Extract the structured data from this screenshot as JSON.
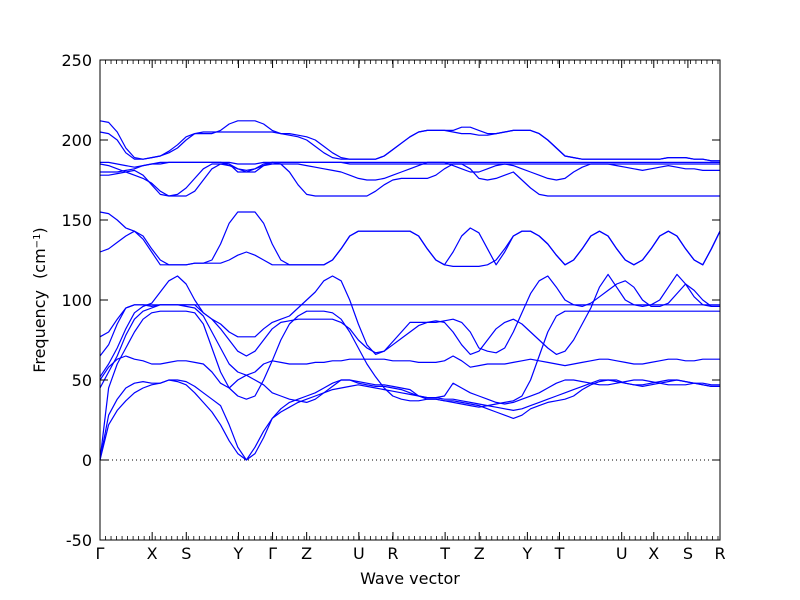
{
  "chart_data": {
    "type": "line",
    "title": "",
    "xlabel": "Wave vector",
    "ylabel": "Frequency",
    "ylabel_unit": "(cm",
    "ylabel_unit_exp": "−1",
    "ylabel_close": ")",
    "ylim": [
      -50,
      250
    ],
    "yticks": [
      -50,
      0,
      50,
      100,
      150,
      200,
      250
    ],
    "grid": false,
    "line_color": "#0000ff",
    "zero_line": {
      "y": 0,
      "style": "dotted"
    },
    "high_symmetry_points": [
      {
        "label": "Γ",
        "x": 0.0
      },
      {
        "label": "X",
        "x": 0.52
      },
      {
        "label": "S",
        "x": 0.86
      },
      {
        "label": "Y",
        "x": 1.38
      },
      {
        "label": "Γ",
        "x": 1.72
      },
      {
        "label": "Z",
        "x": 2.06
      },
      {
        "label": "U",
        "x": 2.58
      },
      {
        "label": "R",
        "x": 2.92
      },
      {
        "label": "T",
        "x": 3.44
      },
      {
        "label": "Z",
        "x": 3.78
      },
      {
        "label": "Y",
        "x": 4.26
      },
      {
        "label": "T",
        "x": 4.58
      },
      {
        "label": "U",
        "x": 5.2
      },
      {
        "label": "X",
        "x": 5.52
      },
      {
        "label": "S",
        "x": 5.86
      },
      {
        "label": "R",
        "x": 6.18
      }
    ],
    "series": [
      {
        "values": [
          0,
          22,
          31,
          37,
          42,
          45,
          47,
          48,
          50,
          49,
          47,
          42,
          36,
          30,
          22,
          12,
          4,
          0,
          4,
          14,
          26,
          32,
          36,
          38,
          40,
          42,
          45,
          48,
          50,
          50,
          49,
          48,
          47,
          47,
          46,
          45,
          44,
          40,
          38,
          38,
          37,
          37,
          36,
          35,
          34,
          32,
          30,
          28,
          26,
          28,
          32,
          34,
          36,
          37,
          38,
          40,
          44,
          47,
          49,
          50,
          50,
          48,
          47,
          46,
          47,
          48,
          49,
          50,
          49,
          48,
          47,
          46,
          46
        ]
      },
      {
        "values": [
          0,
          28,
          38,
          45,
          48,
          49,
          48,
          48,
          50,
          50,
          49,
          46,
          42,
          38,
          34,
          22,
          8,
          0,
          8,
          18,
          26,
          30,
          33,
          36,
          38,
          40,
          42,
          44,
          45,
          46,
          47,
          46,
          45,
          44,
          43,
          42,
          41,
          40,
          39,
          39,
          38,
          38,
          37,
          36,
          35,
          34,
          33,
          32,
          31,
          32,
          34,
          36,
          38,
          40,
          42,
          44,
          46,
          48,
          50,
          50,
          49,
          48,
          47,
          47,
          48,
          49,
          50,
          50,
          49,
          48,
          47,
          46,
          46
        ]
      },
      {
        "values": [
          0,
          45,
          60,
          70,
          80,
          88,
          92,
          93,
          93,
          93,
          93,
          92,
          85,
          70,
          55,
          45,
          40,
          38,
          40,
          50,
          62,
          75,
          85,
          90,
          93,
          93,
          93,
          92,
          88,
          80,
          70,
          60,
          52,
          45,
          40,
          38,
          37,
          37,
          38,
          38,
          37,
          36,
          35,
          34,
          33,
          34,
          35,
          36,
          37,
          40,
          50,
          65,
          80,
          90,
          93,
          93,
          93,
          93,
          93,
          93,
          93,
          93,
          93,
          93,
          93,
          93,
          93,
          93,
          93,
          93,
          93,
          93,
          93
        ]
      },
      {
        "values": [
          45,
          55,
          65,
          78,
          88,
          93,
          95,
          97,
          97,
          97,
          96,
          95,
          90,
          80,
          70,
          60,
          55,
          53,
          55,
          60,
          62,
          61,
          60,
          60,
          60,
          61,
          61,
          62,
          62,
          63,
          63,
          63,
          63,
          63,
          62,
          62,
          62,
          61,
          61,
          61,
          62,
          65,
          62,
          58,
          59,
          60,
          60,
          60,
          61,
          62,
          63,
          62,
          61,
          60,
          59,
          60,
          61,
          62,
          63,
          63,
          62,
          61,
          60,
          60,
          61,
          62,
          63,
          63,
          62,
          62,
          63,
          63,
          63
        ]
      },
      {
        "values": [
          50,
          58,
          63,
          65,
          63,
          62,
          60,
          60,
          61,
          62,
          62,
          61,
          60,
          55,
          48,
          45,
          50,
          53,
          50,
          47,
          42,
          40,
          38,
          37,
          36,
          38,
          42,
          46,
          50,
          50,
          48,
          47,
          46,
          46,
          45,
          44,
          42,
          40,
          39,
          39,
          40,
          48,
          45,
          42,
          40,
          38,
          36,
          35,
          36,
          38,
          40,
          42,
          45,
          48,
          50,
          50,
          49,
          48,
          47,
          47,
          48,
          49,
          50,
          50,
          49,
          48,
          47,
          47,
          47,
          48,
          48,
          47,
          47
        ]
      },
      {
        "values": [
          52,
          60,
          70,
          82,
          92,
          96,
          98,
          105,
          112,
          115,
          110,
          100,
          92,
          88,
          85,
          80,
          77,
          77,
          77,
          82,
          86,
          88,
          90,
          95,
          100,
          105,
          112,
          115,
          112,
          100,
          85,
          72,
          66,
          68,
          74,
          80,
          86,
          86,
          86,
          86,
          87,
          88,
          86,
          80,
          70,
          68,
          67,
          70,
          80,
          92,
          104,
          112,
          115,
          108,
          100,
          97,
          96,
          98,
          102,
          106,
          110,
          112,
          108,
          100,
          96,
          96,
          98,
          104,
          110,
          106,
          100,
          96,
          96
        ]
      },
      {
        "values": [
          65,
          72,
          85,
          95,
          97,
          97,
          97,
          97,
          97,
          97,
          97,
          97,
          97,
          97,
          97,
          97,
          97,
          97,
          97,
          97,
          97,
          97,
          97,
          97,
          97,
          97,
          97,
          97,
          97,
          97,
          97,
          97,
          97,
          97,
          97,
          97,
          97,
          97,
          97,
          97,
          97,
          97,
          97,
          97,
          97,
          97,
          97,
          97,
          97,
          97,
          97,
          97,
          97,
          97,
          97,
          97,
          97,
          97,
          97,
          97,
          97,
          97,
          97,
          97,
          97,
          97,
          97,
          97,
          97,
          97,
          97,
          97,
          97
        ]
      },
      {
        "values": [
          77,
          80,
          88,
          95,
          97,
          97,
          96,
          97,
          97,
          97,
          97,
          97,
          92,
          88,
          82,
          75,
          68,
          65,
          68,
          75,
          82,
          86,
          87,
          88,
          88,
          88,
          88,
          88,
          86,
          82,
          75,
          70,
          67,
          68,
          72,
          76,
          80,
          84,
          86,
          87,
          86,
          80,
          72,
          66,
          68,
          75,
          82,
          86,
          88,
          85,
          80,
          75,
          70,
          66,
          68,
          75,
          85,
          95,
          108,
          116,
          108,
          100,
          97,
          96,
          97,
          100,
          108,
          116,
          110,
          102,
          97,
          96,
          96
        ]
      },
      {
        "values": [
          130,
          132,
          136,
          140,
          143,
          140,
          132,
          125,
          122,
          122,
          122,
          123,
          123,
          123,
          123,
          125,
          128,
          130,
          128,
          125,
          122,
          122,
          122,
          122,
          122,
          122,
          122,
          125,
          132,
          140,
          143,
          143,
          143,
          143,
          143,
          143,
          143,
          140,
          132,
          125,
          122,
          121,
          121,
          121,
          121,
          122,
          125,
          132,
          140,
          143,
          143,
          140,
          135,
          128,
          122,
          125,
          132,
          140,
          143,
          140,
          132,
          125,
          122,
          125,
          132,
          140,
          143,
          140,
          132,
          125,
          122,
          132,
          143
        ]
      },
      {
        "values": [
          155,
          154,
          150,
          145,
          143,
          138,
          130,
          122,
          122,
          122,
          122,
          123,
          123,
          125,
          135,
          148,
          155,
          155,
          155,
          148,
          135,
          125,
          122,
          122,
          122,
          122,
          122,
          125,
          132,
          140,
          143,
          143,
          143,
          143,
          143,
          143,
          143,
          140,
          132,
          125,
          122,
          130,
          140,
          145,
          142,
          132,
          122,
          130,
          140,
          143,
          143,
          140,
          135,
          128,
          122,
          125,
          132,
          140,
          143,
          140,
          132,
          125,
          122,
          125,
          132,
          140,
          143,
          140,
          132,
          125,
          122,
          132,
          143
        ]
      },
      {
        "values": [
          178,
          178,
          179,
          180,
          181,
          178,
          172,
          166,
          165,
          165,
          165,
          168,
          175,
          182,
          185,
          185,
          180,
          180,
          180,
          184,
          186,
          185,
          180,
          172,
          166,
          165,
          165,
          165,
          165,
          165,
          165,
          165,
          168,
          172,
          175,
          176,
          176,
          176,
          176,
          178,
          182,
          185,
          185,
          182,
          176,
          175,
          176,
          178,
          180,
          175,
          170,
          166,
          165,
          165,
          165,
          165,
          165,
          165,
          165,
          165,
          165,
          165,
          165,
          165,
          165,
          165,
          165,
          165,
          165,
          165,
          165,
          165,
          165
        ]
      },
      {
        "values": [
          180,
          180,
          180,
          181,
          182,
          184,
          185,
          185,
          186,
          186,
          186,
          186,
          186,
          186,
          186,
          186,
          185,
          185,
          185,
          186,
          186,
          186,
          186,
          186,
          186,
          186,
          186,
          186,
          186,
          185,
          185,
          185,
          185,
          185,
          185,
          185,
          185,
          185,
          185,
          185,
          185,
          185,
          185,
          185,
          185,
          185,
          185,
          185,
          185,
          185,
          185,
          185,
          185,
          185,
          185,
          185,
          185,
          185,
          185,
          185,
          185,
          185,
          185,
          185,
          185,
          185,
          185,
          185,
          185,
          185,
          185,
          185,
          185
        ]
      },
      {
        "values": [
          185,
          184,
          182,
          180,
          178,
          176,
          173,
          168,
          165,
          166,
          170,
          176,
          182,
          185,
          185,
          184,
          182,
          181,
          182,
          184,
          185,
          185,
          185,
          185,
          184,
          183,
          182,
          181,
          180,
          178,
          176,
          175,
          175,
          176,
          178,
          180,
          182,
          184,
          186,
          186,
          186,
          184,
          182,
          180,
          180,
          182,
          184,
          185,
          184,
          182,
          180,
          178,
          176,
          175,
          176,
          180,
          183,
          185,
          185,
          185,
          184,
          183,
          182,
          181,
          182,
          183,
          184,
          183,
          182,
          182,
          181,
          181,
          181
        ]
      },
      {
        "values": [
          186,
          186,
          185,
          184,
          183,
          184,
          185,
          186,
          186,
          186,
          186,
          186,
          186,
          186,
          186,
          185,
          182,
          180,
          182,
          185,
          186,
          186,
          186,
          186,
          186,
          186,
          186,
          186,
          186,
          186,
          186,
          186,
          186,
          186,
          186,
          186,
          186,
          186,
          186,
          186,
          186,
          186,
          186,
          186,
          186,
          186,
          186,
          186,
          186,
          186,
          186,
          186,
          186,
          186,
          186,
          186,
          186,
          186,
          186,
          186,
          186,
          186,
          186,
          186,
          186,
          186,
          186,
          186,
          186,
          186,
          186,
          186,
          186
        ]
      },
      {
        "values": [
          205,
          204,
          200,
          192,
          188,
          188,
          189,
          190,
          192,
          195,
          200,
          204,
          205,
          205,
          205,
          205,
          205,
          205,
          205,
          205,
          205,
          204,
          204,
          203,
          202,
          200,
          196,
          192,
          189,
          188,
          188,
          188,
          188,
          190,
          194,
          198,
          202,
          205,
          206,
          206,
          206,
          205,
          204,
          204,
          203,
          203,
          204,
          205,
          206,
          206,
          206,
          204,
          200,
          195,
          190,
          189,
          188,
          188,
          188,
          188,
          188,
          188,
          188,
          188,
          188,
          188,
          189,
          189,
          189,
          188,
          188,
          187,
          187
        ]
      },
      {
        "values": [
          212,
          211,
          205,
          195,
          189,
          188,
          189,
          190,
          193,
          197,
          202,
          204,
          204,
          204,
          206,
          210,
          212,
          212,
          212,
          210,
          206,
          204,
          203,
          202,
          200,
          196,
          192,
          189,
          188,
          188,
          188,
          188,
          188,
          190,
          194,
          198,
          202,
          205,
          206,
          206,
          206,
          206,
          208,
          208,
          206,
          204,
          204,
          205,
          206,
          206,
          206,
          204,
          200,
          195,
          190,
          189,
          188,
          188,
          188,
          188,
          188,
          188,
          188,
          188,
          188,
          188,
          189,
          189,
          189,
          188,
          188,
          187,
          187
        ]
      }
    ],
    "x_max": 6.18
  }
}
